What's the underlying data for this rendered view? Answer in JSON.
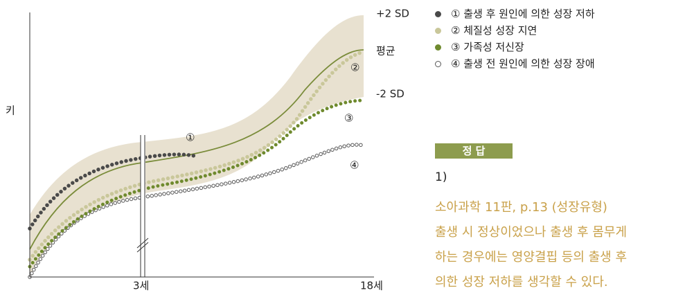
{
  "chart": {
    "y_label": "키",
    "x_labels": [
      "3세",
      "18세"
    ],
    "band_labels": [
      "+2 SD",
      "평균",
      "-2 SD"
    ],
    "curve_labels": [
      "①",
      "②",
      "③",
      "④"
    ]
  },
  "legend": [
    "① 출생 후 원인에 의한 성장 저하",
    "② 체질성 성장 지연",
    "③ 가족성 저신장",
    "④ 출생 전 원인에 의한 성장 장애"
  ],
  "answer": {
    "title": "정 답",
    "number": "1)",
    "lines": [
      "소아과학 11판, p.13 (성장유형)",
      "출생 시 정상이었으나 출생 후 몸무게",
      "하는 경우에는 영양결핍 등의 출생 후",
      "의한 성장 저하를 생각할 수 있다."
    ]
  }
}
